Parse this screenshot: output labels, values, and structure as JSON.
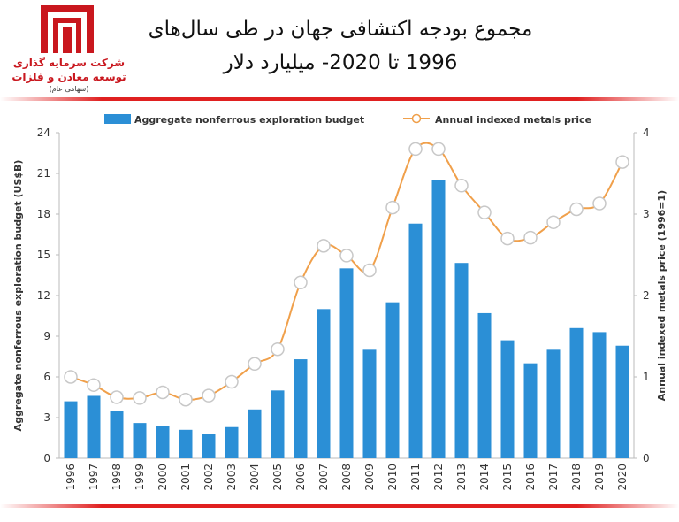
{
  "logo": {
    "line1": "شرکت سرمایه گذاری",
    "line2": "توسعه معادن و فلزات",
    "line3": "(سهامی عام)",
    "color": "#c9171e"
  },
  "header": {
    "title_line1": "مجموع بودجه اکتشافی جهان در طی سال‌های",
    "title_line2": "1996 تا 2020- میلیارد دلار"
  },
  "colors": {
    "bar": "#2b8fd6",
    "line": "#f0a04b",
    "marker_fill": "#ffffff",
    "rule": "#e02020",
    "grid": "#dddddd"
  },
  "chart_data": {
    "type": "bar",
    "categories": [
      "1996",
      "1997",
      "1998",
      "1999",
      "2000",
      "2001",
      "2002",
      "2003",
      "2004",
      "2005",
      "2006",
      "2007",
      "2008",
      "2009",
      "2010",
      "2011",
      "2012",
      "2013",
      "2014",
      "2015",
      "2016",
      "2017",
      "2018",
      "2019",
      "2020"
    ],
    "series": [
      {
        "name": "Aggregate nonferrous exploration budget",
        "type": "bar",
        "axis": "left",
        "values": [
          4.2,
          4.6,
          3.5,
          2.6,
          2.4,
          2.1,
          1.8,
          2.3,
          3.6,
          5.0,
          7.3,
          11.0,
          14.0,
          8.0,
          11.5,
          17.3,
          20.5,
          14.4,
          10.7,
          8.7,
          7.0,
          8.0,
          9.6,
          9.3,
          8.3
        ]
      },
      {
        "name": "Annual indexed metals price",
        "type": "line",
        "axis": "right",
        "values": [
          1.0,
          0.9,
          0.75,
          0.74,
          0.81,
          0.72,
          0.77,
          0.94,
          1.16,
          1.34,
          2.16,
          2.61,
          2.49,
          2.31,
          3.08,
          3.8,
          3.8,
          3.35,
          3.02,
          2.7,
          2.71,
          2.9,
          3.06,
          3.13,
          3.64
        ]
      }
    ],
    "ylabel": "Aggregate nonferrous exploration budget (US$B)",
    "ylabel_right": "Annual indexed metals price  (1996=1)",
    "ylim": [
      0,
      24
    ],
    "yticks": [
      "0",
      "3",
      "6",
      "9",
      "12",
      "15",
      "18",
      "21",
      "24"
    ],
    "ylim_right": [
      0,
      4
    ],
    "yticks_right": [
      "0",
      "1",
      "2",
      "3",
      "4"
    ],
    "legend_position": "top",
    "grid": false
  }
}
